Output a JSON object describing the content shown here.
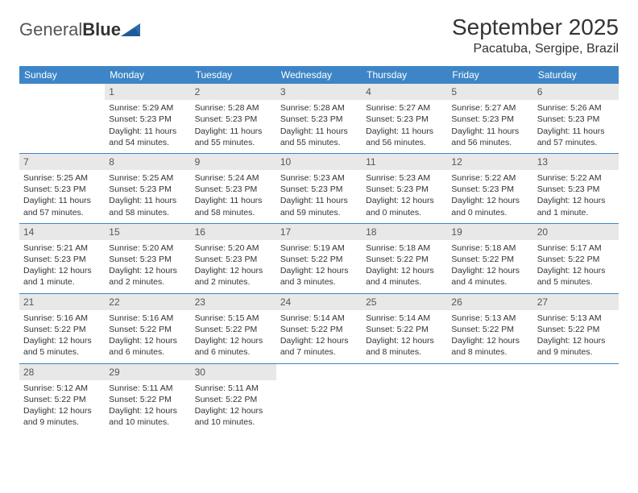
{
  "logo": {
    "text1": "General",
    "text2": "Blue"
  },
  "title": "September 2025",
  "location": "Pacatuba, Sergipe, Brazil",
  "colors": {
    "header_bg": "#3d85c6",
    "header_text": "#ffffff",
    "daynum_bg": "#e8e8e8",
    "border": "#3d85c6",
    "logo_accent": "#2a6db0"
  },
  "weekdays": [
    "Sunday",
    "Monday",
    "Tuesday",
    "Wednesday",
    "Thursday",
    "Friday",
    "Saturday"
  ],
  "weeks": [
    [
      {
        "n": "",
        "sr": "",
        "ss": "",
        "dl": ""
      },
      {
        "n": "1",
        "sr": "Sunrise: 5:29 AM",
        "ss": "Sunset: 5:23 PM",
        "dl": "Daylight: 11 hours and 54 minutes."
      },
      {
        "n": "2",
        "sr": "Sunrise: 5:28 AM",
        "ss": "Sunset: 5:23 PM",
        "dl": "Daylight: 11 hours and 55 minutes."
      },
      {
        "n": "3",
        "sr": "Sunrise: 5:28 AM",
        "ss": "Sunset: 5:23 PM",
        "dl": "Daylight: 11 hours and 55 minutes."
      },
      {
        "n": "4",
        "sr": "Sunrise: 5:27 AM",
        "ss": "Sunset: 5:23 PM",
        "dl": "Daylight: 11 hours and 56 minutes."
      },
      {
        "n": "5",
        "sr": "Sunrise: 5:27 AM",
        "ss": "Sunset: 5:23 PM",
        "dl": "Daylight: 11 hours and 56 minutes."
      },
      {
        "n": "6",
        "sr": "Sunrise: 5:26 AM",
        "ss": "Sunset: 5:23 PM",
        "dl": "Daylight: 11 hours and 57 minutes."
      }
    ],
    [
      {
        "n": "7",
        "sr": "Sunrise: 5:25 AM",
        "ss": "Sunset: 5:23 PM",
        "dl": "Daylight: 11 hours and 57 minutes."
      },
      {
        "n": "8",
        "sr": "Sunrise: 5:25 AM",
        "ss": "Sunset: 5:23 PM",
        "dl": "Daylight: 11 hours and 58 minutes."
      },
      {
        "n": "9",
        "sr": "Sunrise: 5:24 AM",
        "ss": "Sunset: 5:23 PM",
        "dl": "Daylight: 11 hours and 58 minutes."
      },
      {
        "n": "10",
        "sr": "Sunrise: 5:23 AM",
        "ss": "Sunset: 5:23 PM",
        "dl": "Daylight: 11 hours and 59 minutes."
      },
      {
        "n": "11",
        "sr": "Sunrise: 5:23 AM",
        "ss": "Sunset: 5:23 PM",
        "dl": "Daylight: 12 hours and 0 minutes."
      },
      {
        "n": "12",
        "sr": "Sunrise: 5:22 AM",
        "ss": "Sunset: 5:23 PM",
        "dl": "Daylight: 12 hours and 0 minutes."
      },
      {
        "n": "13",
        "sr": "Sunrise: 5:22 AM",
        "ss": "Sunset: 5:23 PM",
        "dl": "Daylight: 12 hours and 1 minute."
      }
    ],
    [
      {
        "n": "14",
        "sr": "Sunrise: 5:21 AM",
        "ss": "Sunset: 5:23 PM",
        "dl": "Daylight: 12 hours and 1 minute."
      },
      {
        "n": "15",
        "sr": "Sunrise: 5:20 AM",
        "ss": "Sunset: 5:23 PM",
        "dl": "Daylight: 12 hours and 2 minutes."
      },
      {
        "n": "16",
        "sr": "Sunrise: 5:20 AM",
        "ss": "Sunset: 5:23 PM",
        "dl": "Daylight: 12 hours and 2 minutes."
      },
      {
        "n": "17",
        "sr": "Sunrise: 5:19 AM",
        "ss": "Sunset: 5:22 PM",
        "dl": "Daylight: 12 hours and 3 minutes."
      },
      {
        "n": "18",
        "sr": "Sunrise: 5:18 AM",
        "ss": "Sunset: 5:22 PM",
        "dl": "Daylight: 12 hours and 4 minutes."
      },
      {
        "n": "19",
        "sr": "Sunrise: 5:18 AM",
        "ss": "Sunset: 5:22 PM",
        "dl": "Daylight: 12 hours and 4 minutes."
      },
      {
        "n": "20",
        "sr": "Sunrise: 5:17 AM",
        "ss": "Sunset: 5:22 PM",
        "dl": "Daylight: 12 hours and 5 minutes."
      }
    ],
    [
      {
        "n": "21",
        "sr": "Sunrise: 5:16 AM",
        "ss": "Sunset: 5:22 PM",
        "dl": "Daylight: 12 hours and 5 minutes."
      },
      {
        "n": "22",
        "sr": "Sunrise: 5:16 AM",
        "ss": "Sunset: 5:22 PM",
        "dl": "Daylight: 12 hours and 6 minutes."
      },
      {
        "n": "23",
        "sr": "Sunrise: 5:15 AM",
        "ss": "Sunset: 5:22 PM",
        "dl": "Daylight: 12 hours and 6 minutes."
      },
      {
        "n": "24",
        "sr": "Sunrise: 5:14 AM",
        "ss": "Sunset: 5:22 PM",
        "dl": "Daylight: 12 hours and 7 minutes."
      },
      {
        "n": "25",
        "sr": "Sunrise: 5:14 AM",
        "ss": "Sunset: 5:22 PM",
        "dl": "Daylight: 12 hours and 8 minutes."
      },
      {
        "n": "26",
        "sr": "Sunrise: 5:13 AM",
        "ss": "Sunset: 5:22 PM",
        "dl": "Daylight: 12 hours and 8 minutes."
      },
      {
        "n": "27",
        "sr": "Sunrise: 5:13 AM",
        "ss": "Sunset: 5:22 PM",
        "dl": "Daylight: 12 hours and 9 minutes."
      }
    ],
    [
      {
        "n": "28",
        "sr": "Sunrise: 5:12 AM",
        "ss": "Sunset: 5:22 PM",
        "dl": "Daylight: 12 hours and 9 minutes."
      },
      {
        "n": "29",
        "sr": "Sunrise: 5:11 AM",
        "ss": "Sunset: 5:22 PM",
        "dl": "Daylight: 12 hours and 10 minutes."
      },
      {
        "n": "30",
        "sr": "Sunrise: 5:11 AM",
        "ss": "Sunset: 5:22 PM",
        "dl": "Daylight: 12 hours and 10 minutes."
      },
      {
        "n": "",
        "sr": "",
        "ss": "",
        "dl": ""
      },
      {
        "n": "",
        "sr": "",
        "ss": "",
        "dl": ""
      },
      {
        "n": "",
        "sr": "",
        "ss": "",
        "dl": ""
      },
      {
        "n": "",
        "sr": "",
        "ss": "",
        "dl": ""
      }
    ]
  ]
}
